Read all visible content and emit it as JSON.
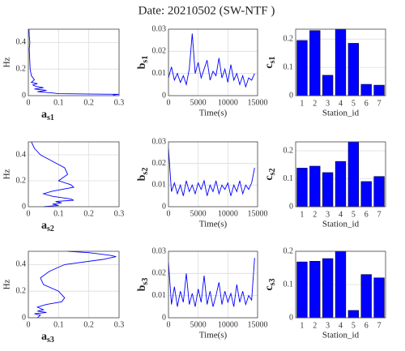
{
  "title": "Date: 20210502  (SW-NTF )",
  "chart_data": [
    {
      "type": "line",
      "ylabel": "Hz",
      "xlabel": "a",
      "xlabel_sub": "s1",
      "xlim": [
        0,
        0.3
      ],
      "xticks": [
        0,
        0.1,
        0.2,
        0.3
      ],
      "ylim": [
        0,
        0.5
      ],
      "yticks": [
        0,
        0.2,
        0.4
      ],
      "grid": true,
      "color": "#0000ff",
      "x": [
        0.002,
        0.003,
        0.005,
        0.003,
        0.004,
        0.005,
        0.006,
        0.01,
        0.02,
        0.01,
        0.03,
        0.015,
        0.025,
        0.05,
        0.02,
        0.06,
        0.03,
        0.08,
        0.1,
        0.3,
        0.28
      ],
      "values": [
        0.5,
        0.45,
        0.4,
        0.35,
        0.3,
        0.25,
        0.2,
        0.15,
        0.12,
        0.1,
        0.09,
        0.08,
        0.07,
        0.06,
        0.05,
        0.04,
        0.03,
        0.02,
        0.015,
        0.01,
        0.005
      ]
    },
    {
      "type": "line",
      "ylabel": "b",
      "ylabel_sub": "s1",
      "xlabel": "Time(s)",
      "xlim": [
        0,
        15000
      ],
      "xticks": [
        0,
        5000,
        10000,
        15000
      ],
      "ylim": [
        0,
        0.03
      ],
      "yticks": [
        0,
        0.01,
        0.02,
        0.03
      ],
      "grid": true,
      "color": "#0000ff",
      "x": [
        0,
        500,
        1000,
        1500,
        2000,
        2500,
        3000,
        3500,
        4000,
        4500,
        5000,
        5500,
        6000,
        6500,
        7000,
        7500,
        8000,
        8500,
        9000,
        9500,
        10000,
        10500,
        11000,
        11500,
        12000,
        12500,
        13000,
        13500,
        14000,
        14500
      ],
      "values": [
        0.008,
        0.013,
        0.007,
        0.01,
        0.006,
        0.009,
        0.005,
        0.012,
        0.028,
        0.01,
        0.015,
        0.008,
        0.012,
        0.016,
        0.007,
        0.011,
        0.009,
        0.017,
        0.008,
        0.012,
        0.006,
        0.014,
        0.007,
        0.01,
        0.005,
        0.009,
        0.004,
        0.008,
        0.007,
        0.01
      ]
    },
    {
      "type": "bar",
      "ylabel": "c",
      "ylabel_sub": "s1",
      "xlabel": "Station_id",
      "categories": [
        "1",
        "2",
        "3",
        "4",
        "5",
        "6",
        "7"
      ],
      "ylim": [
        0,
        0.235
      ],
      "yticks": [
        0,
        0.1,
        0.2
      ],
      "grid": true,
      "color": "#0000ff",
      "values": [
        0.195,
        0.23,
        0.072,
        0.235,
        0.185,
        0.04,
        0.037
      ]
    },
    {
      "type": "line",
      "ylabel": "Hz",
      "xlabel": "a",
      "xlabel_sub": "s2",
      "xlim": [
        0,
        0.3
      ],
      "xticks": [
        0,
        0.1,
        0.2,
        0.3
      ],
      "ylim": [
        0,
        0.5
      ],
      "yticks": [
        0,
        0.2,
        0.4
      ],
      "grid": true,
      "color": "#0000ff",
      "x": [
        0.01,
        0.02,
        0.04,
        0.08,
        0.12,
        0.13,
        0.1,
        0.14,
        0.15,
        0.08,
        0.05,
        0.08,
        0.14,
        0.15,
        0.09,
        0.11,
        0.08,
        0.1,
        0.05
      ],
      "values": [
        0.5,
        0.45,
        0.4,
        0.35,
        0.3,
        0.25,
        0.2,
        0.17,
        0.15,
        0.12,
        0.1,
        0.08,
        0.06,
        0.05,
        0.04,
        0.03,
        0.02,
        0.01,
        0
      ]
    },
    {
      "type": "line",
      "ylabel": "b",
      "ylabel_sub": "s2",
      "xlabel": "Time(s)",
      "xlim": [
        0,
        15000
      ],
      "xticks": [
        0,
        5000,
        10000,
        15000
      ],
      "ylim": [
        0,
        0.03
      ],
      "yticks": [
        0,
        0.01,
        0.02,
        0.03
      ],
      "grid": true,
      "color": "#0000ff",
      "x": [
        0,
        500,
        1000,
        1500,
        2000,
        2500,
        3000,
        3500,
        4000,
        4500,
        5000,
        5500,
        6000,
        6500,
        7000,
        7500,
        8000,
        8500,
        9000,
        9500,
        10000,
        10500,
        11000,
        11500,
        12000,
        12500,
        13000,
        13500,
        14000,
        14500
      ],
      "values": [
        0.027,
        0.007,
        0.011,
        0.006,
        0.01,
        0.005,
        0.012,
        0.007,
        0.01,
        0.006,
        0.011,
        0.008,
        0.012,
        0.005,
        0.01,
        0.007,
        0.012,
        0.006,
        0.01,
        0.008,
        0.011,
        0.005,
        0.01,
        0.007,
        0.012,
        0.006,
        0.01,
        0.008,
        0.011,
        0.018
      ]
    },
    {
      "type": "bar",
      "ylabel": "c",
      "ylabel_sub": "s2",
      "xlabel": "Station_id",
      "categories": [
        "1",
        "2",
        "3",
        "4",
        "5",
        "6",
        "7"
      ],
      "ylim": [
        0,
        0.232
      ],
      "yticks": [
        0,
        0.1,
        0.2
      ],
      "grid": true,
      "color": "#0000ff",
      "values": [
        0.138,
        0.145,
        0.122,
        0.162,
        0.232,
        0.09,
        0.108
      ]
    },
    {
      "type": "line",
      "ylabel": "Hz",
      "xlabel": "a",
      "xlabel_sub": "s3",
      "xlim": [
        0,
        0.3
      ],
      "xticks": [
        0,
        0.1,
        0.2,
        0.3
      ],
      "ylim": [
        0,
        0.5
      ],
      "yticks": [
        0,
        0.2,
        0.4
      ],
      "grid": true,
      "color": "#0000ff",
      "x": [
        0.13,
        0.2,
        0.27,
        0.29,
        0.25,
        0.12,
        0.07,
        0.04,
        0.05,
        0.1,
        0.12,
        0.11,
        0.06,
        0.03,
        0.05,
        0.03,
        0.06,
        0.02,
        0.04,
        0.03
      ],
      "values": [
        0.5,
        0.49,
        0.47,
        0.46,
        0.44,
        0.4,
        0.35,
        0.3,
        0.25,
        0.2,
        0.15,
        0.12,
        0.1,
        0.08,
        0.06,
        0.05,
        0.04,
        0.03,
        0.02,
        0
      ]
    },
    {
      "type": "line",
      "ylabel": "b",
      "ylabel_sub": "s3",
      "xlabel": "Time(s)",
      "xlim": [
        0,
        15000
      ],
      "xticks": [
        0,
        5000,
        10000,
        15000
      ],
      "ylim": [
        0,
        0.03
      ],
      "yticks": [
        0,
        0.01,
        0.02,
        0.03
      ],
      "grid": true,
      "color": "#0000ff",
      "x": [
        0,
        500,
        1000,
        1500,
        2000,
        2500,
        3000,
        3500,
        4000,
        4500,
        5000,
        5500,
        6000,
        6500,
        7000,
        7500,
        8000,
        8500,
        9000,
        9500,
        10000,
        10500,
        11000,
        11500,
        12000,
        12500,
        13000,
        13500,
        14000,
        14500
      ],
      "values": [
        0.025,
        0.006,
        0.014,
        0.005,
        0.012,
        0.007,
        0.02,
        0.006,
        0.011,
        0.005,
        0.013,
        0.007,
        0.019,
        0.006,
        0.012,
        0.005,
        0.01,
        0.016,
        0.006,
        0.012,
        0.007,
        0.011,
        0.005,
        0.015,
        0.007,
        0.012,
        0.006,
        0.01,
        0.008,
        0.027
      ]
    },
    {
      "type": "bar",
      "ylabel": "c",
      "ylabel_sub": "s3",
      "xlabel": "Station_id",
      "categories": [
        "1",
        "2",
        "3",
        "4",
        "5",
        "6",
        "7"
      ],
      "ylim": [
        0,
        0.2
      ],
      "yticks": [
        0,
        0.1,
        0.2
      ],
      "grid": true,
      "color": "#0000ff",
      "values": [
        0.168,
        0.17,
        0.178,
        0.2,
        0.022,
        0.13,
        0.12
      ]
    }
  ]
}
